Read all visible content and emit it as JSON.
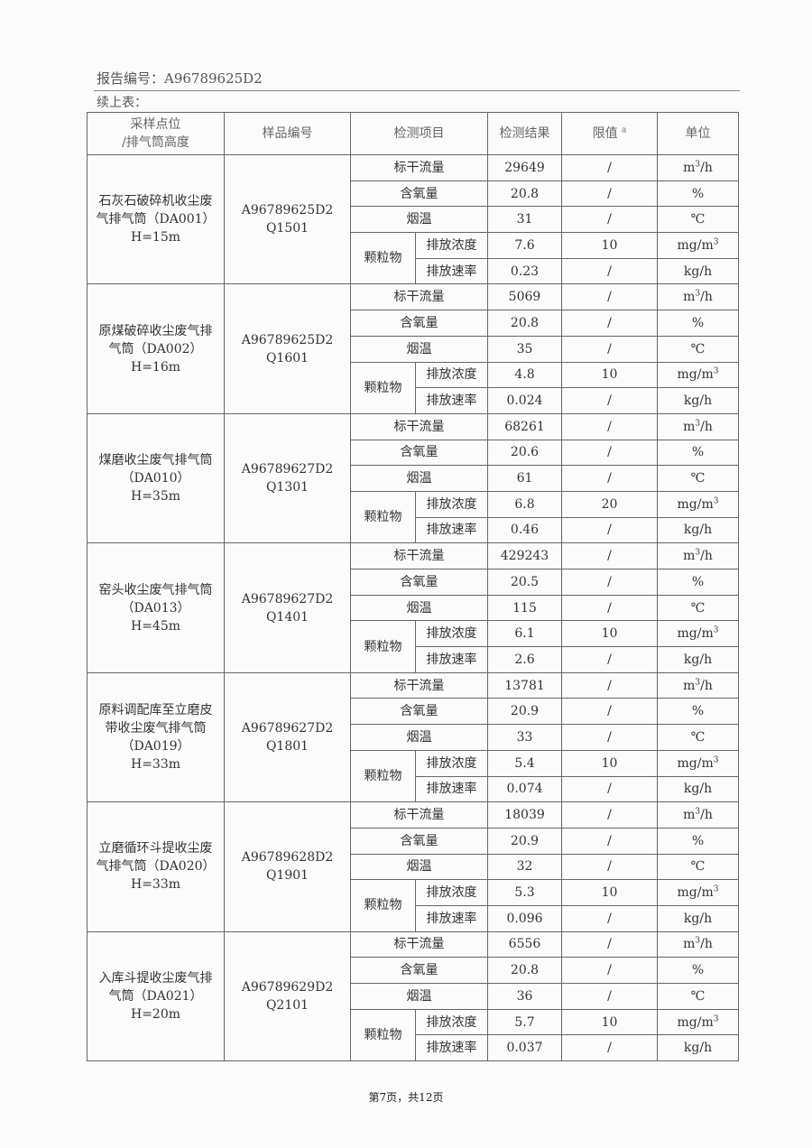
{
  "header": {
    "report_no": "报告编号：A96789625D2",
    "continued": "续上表："
  },
  "table": {
    "columns": {
      "location": "采样点位/排气筒高度",
      "location_l1": "采样点位",
      "location_l2": "/排气筒高度",
      "sample": "样品编号",
      "item": "检测项目",
      "result": "检测结果",
      "limit": "限值",
      "limit_note": "a",
      "unit": "单位"
    },
    "labels": {
      "flow": "标干流量",
      "oxygen": "含氧量",
      "temp": "烟温",
      "pm": "颗粒物",
      "conc": "排放浓度",
      "rate": "排放速率"
    },
    "units": {
      "flow": "m3/h",
      "oxygen": "%",
      "temp": "℃",
      "conc": "mg/m3",
      "rate": "kg/h"
    },
    "blocks": [
      {
        "location": [
          "石灰石破碎机收尘废",
          "气排气筒（DA001）",
          "H=15m"
        ],
        "sample": [
          "A96789625D2",
          "Q1501"
        ],
        "results": [
          "29649",
          "20.8",
          "31",
          "7.6",
          "0.23"
        ],
        "limits": [
          "/",
          "/",
          "/",
          "10",
          "/"
        ]
      },
      {
        "location": [
          "原煤破碎收尘废气排",
          "气筒（DA002）",
          "H=16m"
        ],
        "sample": [
          "A96789625D2",
          "Q1601"
        ],
        "results": [
          "5069",
          "20.8",
          "35",
          "4.8",
          "0.024"
        ],
        "limits": [
          "/",
          "/",
          "/",
          "10",
          "/"
        ]
      },
      {
        "location": [
          "煤磨收尘废气排气筒",
          "（DA010）",
          "H=35m"
        ],
        "sample": [
          "A96789627D2",
          "Q1301"
        ],
        "results": [
          "68261",
          "20.6",
          "61",
          "6.8",
          "0.46"
        ],
        "limits": [
          "/",
          "/",
          "/",
          "20",
          "/"
        ]
      },
      {
        "location": [
          "窑头收尘废气排气筒",
          "（DA013）",
          "H=45m"
        ],
        "sample": [
          "A96789627D2",
          "Q1401"
        ],
        "results": [
          "429243",
          "20.5",
          "115",
          "6.1",
          "2.6"
        ],
        "limits": [
          "/",
          "/",
          "/",
          "10",
          "/"
        ]
      },
      {
        "location": [
          "原料调配库至立磨皮",
          "带收尘废气排气筒",
          "（DA019）",
          "H=33m"
        ],
        "sample": [
          "A96789627D2",
          "Q1801"
        ],
        "results": [
          "13781",
          "20.9",
          "33",
          "5.4",
          "0.074"
        ],
        "limits": [
          "/",
          "/",
          "/",
          "10",
          "/"
        ]
      },
      {
        "location": [
          "立磨循环斗提收尘废",
          "气排气筒（DA020）",
          "H=33m"
        ],
        "sample": [
          "A96789628D2",
          "Q1901"
        ],
        "results": [
          "18039",
          "20.9",
          "32",
          "5.3",
          "0.096"
        ],
        "limits": [
          "/",
          "/",
          "/",
          "10",
          "/"
        ]
      },
      {
        "location": [
          "入库斗提收尘废气排",
          "气筒（DA021）",
          "H=20m"
        ],
        "sample": [
          "A96789629D2",
          "Q2101"
        ],
        "results": [
          "6556",
          "20.8",
          "36",
          "5.7",
          "0.037"
        ],
        "limits": [
          "/",
          "/",
          "/",
          "10",
          "/"
        ]
      }
    ]
  },
  "footer": {
    "page": "第7页，共12页"
  }
}
